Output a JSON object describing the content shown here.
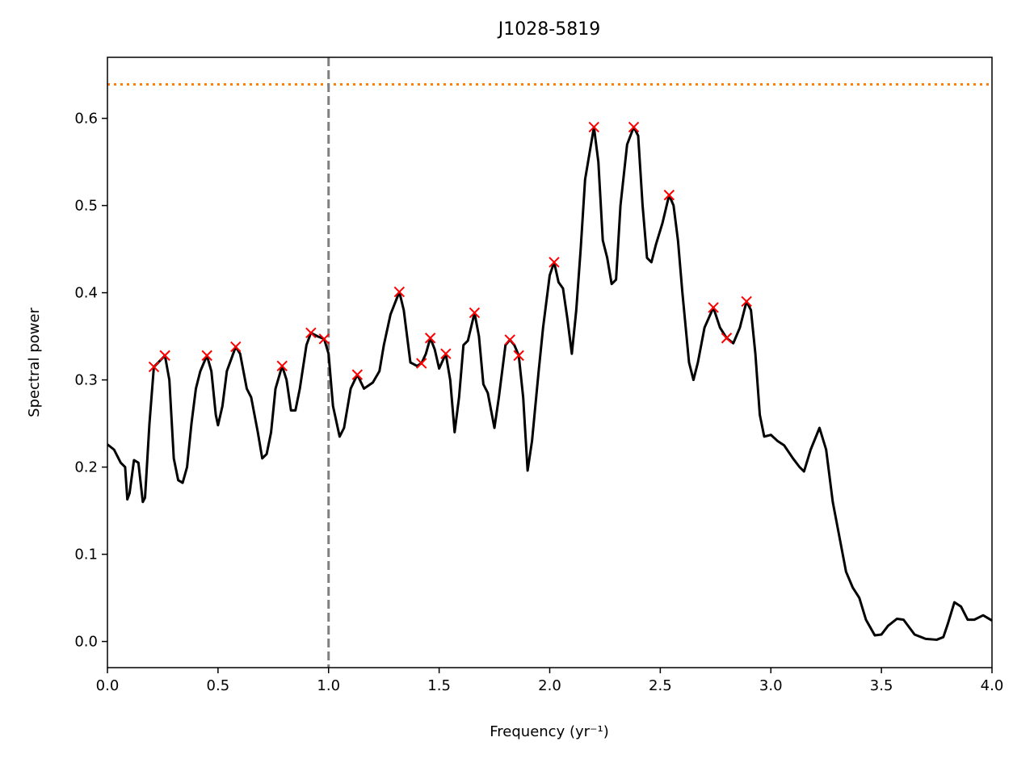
{
  "chart_data": {
    "type": "line",
    "title": "J1028-5819",
    "xlabel": "Frequency (yr⁻¹)",
    "ylabel": "Spectral power",
    "xlim": [
      0,
      4
    ],
    "ylim": [
      -0.03,
      0.67
    ],
    "xticks": [
      {
        "value": 0,
        "label": "0.0"
      },
      0.5,
      {
        "value": 1,
        "label": "1.0"
      },
      1.5,
      {
        "value": 2,
        "label": "2.0"
      },
      2.5,
      {
        "value": 3,
        "label": "3.0"
      },
      3.5,
      {
        "value": 4,
        "label": "4.0"
      }
    ],
    "yticks": [
      {
        "value": 0,
        "label": "0.0"
      },
      0.1,
      0.2,
      0.3,
      0.4,
      0.5,
      0.6
    ],
    "hline": {
      "value": 0.639,
      "color": "#ff7f0e"
    },
    "vline": {
      "value": 1,
      "color": "#808080"
    },
    "series": [
      {
        "color": "#000000",
        "x": [
          0,
          0.03,
          0.06,
          0.08,
          0.09,
          0.1,
          0.12,
          0.14,
          0.16,
          0.17,
          0.19,
          0.21,
          0.23,
          0.26,
          0.28,
          0.3,
          0.32,
          0.34,
          0.36,
          0.38,
          0.4,
          0.42,
          0.45,
          0.47,
          0.49,
          0.5,
          0.52,
          0.54,
          0.58,
          0.6,
          0.63,
          0.65,
          0.68,
          0.7,
          0.72,
          0.74,
          0.76,
          0.79,
          0.81,
          0.83,
          0.85,
          0.87,
          0.9,
          0.92,
          0.95,
          0.98,
          1.0,
          1.02,
          1.05,
          1.07,
          1.1,
          1.13,
          1.16,
          1.2,
          1.23,
          1.25,
          1.28,
          1.32,
          1.34,
          1.37,
          1.4,
          1.42,
          1.44,
          1.46,
          1.48,
          1.5,
          1.53,
          1.55,
          1.57,
          1.59,
          1.61,
          1.63,
          1.66,
          1.68,
          1.7,
          1.72,
          1.75,
          1.77,
          1.8,
          1.82,
          1.84,
          1.86,
          1.88,
          1.9,
          1.92,
          1.95,
          1.97,
          2.0,
          2.02,
          2.04,
          2.06,
          2.08,
          2.1,
          2.12,
          2.14,
          2.16,
          2.18,
          2.2,
          2.22,
          2.24,
          2.26,
          2.28,
          2.3,
          2.32,
          2.35,
          2.38,
          2.4,
          2.42,
          2.44,
          2.46,
          2.48,
          2.51,
          2.54,
          2.56,
          2.58,
          2.6,
          2.63,
          2.65,
          2.67,
          2.7,
          2.74,
          2.77,
          2.8,
          2.83,
          2.86,
          2.89,
          2.91,
          2.93,
          2.95,
          2.97,
          3.0,
          3.03,
          3.06,
          3.1,
          3.13,
          3.15,
          3.18,
          3.22,
          3.25,
          3.28,
          3.31,
          3.34,
          3.37,
          3.4,
          3.43,
          3.47,
          3.5,
          3.53,
          3.57,
          3.6,
          3.65,
          3.7,
          3.75,
          3.78,
          3.8,
          3.83,
          3.86,
          3.89,
          3.92,
          3.96,
          4.0
        ],
        "values": [
          0.226,
          0.22,
          0.205,
          0.2,
          0.163,
          0.17,
          0.208,
          0.205,
          0.16,
          0.165,
          0.25,
          0.315,
          0.32,
          0.328,
          0.3,
          0.21,
          0.185,
          0.182,
          0.2,
          0.25,
          0.29,
          0.31,
          0.328,
          0.31,
          0.26,
          0.248,
          0.27,
          0.31,
          0.338,
          0.33,
          0.29,
          0.28,
          0.24,
          0.21,
          0.215,
          0.24,
          0.29,
          0.316,
          0.3,
          0.265,
          0.265,
          0.29,
          0.34,
          0.354,
          0.35,
          0.347,
          0.33,
          0.27,
          0.235,
          0.245,
          0.29,
          0.306,
          0.29,
          0.297,
          0.31,
          0.34,
          0.375,
          0.401,
          0.38,
          0.32,
          0.316,
          0.319,
          0.33,
          0.348,
          0.335,
          0.313,
          0.33,
          0.3,
          0.24,
          0.28,
          0.34,
          0.345,
          0.377,
          0.35,
          0.295,
          0.285,
          0.245,
          0.28,
          0.34,
          0.346,
          0.34,
          0.328,
          0.28,
          0.196,
          0.23,
          0.31,
          0.36,
          0.42,
          0.435,
          0.412,
          0.405,
          0.37,
          0.33,
          0.38,
          0.45,
          0.53,
          0.56,
          0.59,
          0.55,
          0.46,
          0.44,
          0.41,
          0.415,
          0.5,
          0.57,
          0.59,
          0.58,
          0.5,
          0.44,
          0.435,
          0.455,
          0.48,
          0.512,
          0.5,
          0.46,
          0.4,
          0.32,
          0.3,
          0.32,
          0.36,
          0.383,
          0.36,
          0.348,
          0.342,
          0.36,
          0.39,
          0.38,
          0.33,
          0.26,
          0.235,
          0.237,
          0.23,
          0.225,
          0.21,
          0.2,
          0.195,
          0.22,
          0.245,
          0.22,
          0.16,
          0.12,
          0.08,
          0.062,
          0.05,
          0.025,
          0.007,
          0.008,
          0.018,
          0.026,
          0.025,
          0.008,
          0.003,
          0.002,
          0.005,
          0.02,
          0.045,
          0.04,
          0.025,
          0.025,
          0.03,
          0.024
        ]
      },
      {
        "color": "#ff0000",
        "marker": "x",
        "x": [
          0.21,
          0.26,
          0.45,
          0.58,
          0.79,
          0.92,
          0.98,
          1.13,
          1.32,
          1.42,
          1.46,
          1.53,
          1.66,
          1.82,
          1.86,
          2.02,
          2.2,
          2.38,
          2.54,
          2.74,
          2.8,
          2.89
        ],
        "values": [
          0.315,
          0.328,
          0.328,
          0.338,
          0.316,
          0.354,
          0.347,
          0.306,
          0.401,
          0.319,
          0.348,
          0.33,
          0.377,
          0.346,
          0.328,
          0.435,
          0.59,
          0.59,
          0.512,
          0.383,
          0.348,
          0.39
        ]
      }
    ]
  }
}
